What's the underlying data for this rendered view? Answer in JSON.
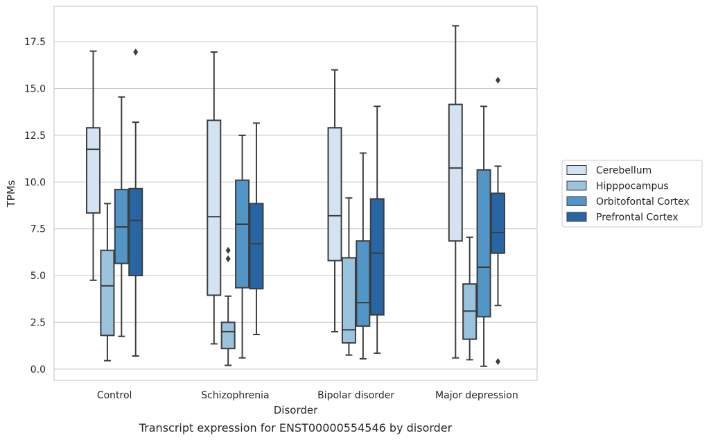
{
  "chart_data": {
    "type": "box",
    "caption": "Transcript expression for ENST00000554546 by disorder",
    "xlabel": "Disorder",
    "ylabel": "TPMs",
    "ylim": [
      -0.6,
      19.4
    ],
    "yticks": [
      0.0,
      2.5,
      5.0,
      7.5,
      10.0,
      12.5,
      15.0,
      17.5
    ],
    "ytick_labels": [
      "0.0",
      "2.5",
      "5.0",
      "7.5",
      "10.0",
      "12.5",
      "15.0",
      "17.5"
    ],
    "grid": "horizontal",
    "legend_position": "right",
    "categories": [
      "Control",
      "Schizophrenia",
      "Bipolar disorder",
      "Major depression"
    ],
    "series": [
      {
        "name": "Cerebellum",
        "color": "#d3e3f2",
        "boxes": [
          {
            "whisker_low": 4.75,
            "q1": 8.35,
            "median": 11.75,
            "q3": 12.9,
            "whisker_high": 17.0,
            "outliers": []
          },
          {
            "whisker_low": 1.35,
            "q1": 3.95,
            "median": 8.15,
            "q3": 13.3,
            "whisker_high": 16.95,
            "outliers": []
          },
          {
            "whisker_low": 2.0,
            "q1": 5.8,
            "median": 8.2,
            "q3": 12.9,
            "whisker_high": 16.0,
            "outliers": []
          },
          {
            "whisker_low": 0.6,
            "q1": 6.85,
            "median": 10.75,
            "q3": 14.15,
            "whisker_high": 18.35,
            "outliers": []
          }
        ]
      },
      {
        "name": "Hipppocampus",
        "color": "#9ac3de",
        "boxes": [
          {
            "whisker_low": 0.45,
            "q1": 1.8,
            "median": 4.45,
            "q3": 6.35,
            "whisker_high": 8.85,
            "outliers": []
          },
          {
            "whisker_low": 0.2,
            "q1": 1.1,
            "median": 2.0,
            "q3": 2.5,
            "whisker_high": 3.9,
            "outliers": [
              5.9,
              6.35
            ]
          },
          {
            "whisker_low": 0.75,
            "q1": 1.4,
            "median": 2.1,
            "q3": 5.95,
            "whisker_high": 9.15,
            "outliers": []
          },
          {
            "whisker_low": 0.5,
            "q1": 1.6,
            "median": 3.1,
            "q3": 4.55,
            "whisker_high": 7.05,
            "outliers": []
          }
        ]
      },
      {
        "name": "Orbitofontal Cortex",
        "color": "#5296c7",
        "boxes": [
          {
            "whisker_low": 1.75,
            "q1": 5.65,
            "median": 7.6,
            "q3": 9.6,
            "whisker_high": 14.55,
            "outliers": []
          },
          {
            "whisker_low": 0.6,
            "q1": 4.35,
            "median": 7.75,
            "q3": 10.1,
            "whisker_high": 12.5,
            "outliers": []
          },
          {
            "whisker_low": 0.55,
            "q1": 2.3,
            "median": 3.55,
            "q3": 6.85,
            "whisker_high": 11.55,
            "outliers": []
          },
          {
            "whisker_low": 0.15,
            "q1": 2.8,
            "median": 5.45,
            "q3": 10.65,
            "whisker_high": 14.05,
            "outliers": []
          }
        ]
      },
      {
        "name": "Prefrontal Cortex",
        "color": "#2765a5",
        "boxes": [
          {
            "whisker_low": 0.7,
            "q1": 5.0,
            "median": 7.95,
            "q3": 9.65,
            "whisker_high": 13.2,
            "outliers": [
              16.95
            ]
          },
          {
            "whisker_low": 1.85,
            "q1": 4.3,
            "median": 6.7,
            "q3": 8.85,
            "whisker_high": 13.15,
            "outliers": []
          },
          {
            "whisker_low": 0.85,
            "q1": 2.9,
            "median": 6.2,
            "q3": 9.1,
            "whisker_high": 14.05,
            "outliers": []
          },
          {
            "whisker_low": 3.4,
            "q1": 6.2,
            "median": 7.3,
            "q3": 9.4,
            "whisker_high": 10.85,
            "outliers": [
              15.45,
              0.4
            ]
          }
        ]
      }
    ]
  }
}
